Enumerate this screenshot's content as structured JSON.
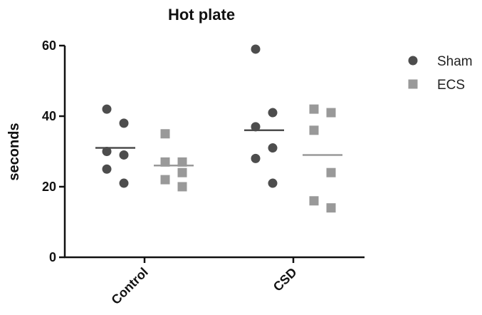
{
  "chart_data": {
    "type": "scatter",
    "title": "Hot plate",
    "xlabel": "",
    "ylabel": "seconds",
    "ylim": [
      0,
      60
    ],
    "yticks": [
      0,
      20,
      40,
      60
    ],
    "categories": [
      "Control",
      "CSD"
    ],
    "grid": false,
    "legend_position": "top-right",
    "series": [
      {
        "name": "Sham",
        "marker": "circle",
        "color": "#4d4d4d",
        "points": [
          {
            "category": "Control",
            "values": [
              42,
              38,
              30,
              29,
              25,
              21
            ],
            "mean": 31
          },
          {
            "category": "CSD",
            "values": [
              59,
              41,
              37,
              31,
              28,
              21
            ],
            "mean": 36
          }
        ]
      },
      {
        "name": "ECS",
        "marker": "square",
        "color": "#999999",
        "points": [
          {
            "category": "Control",
            "values": [
              35,
              27,
              27,
              24,
              22,
              20
            ],
            "mean": 26
          },
          {
            "category": "CSD",
            "values": [
              42,
              41,
              36,
              24,
              16,
              14
            ],
            "mean": 29
          }
        ]
      }
    ]
  }
}
